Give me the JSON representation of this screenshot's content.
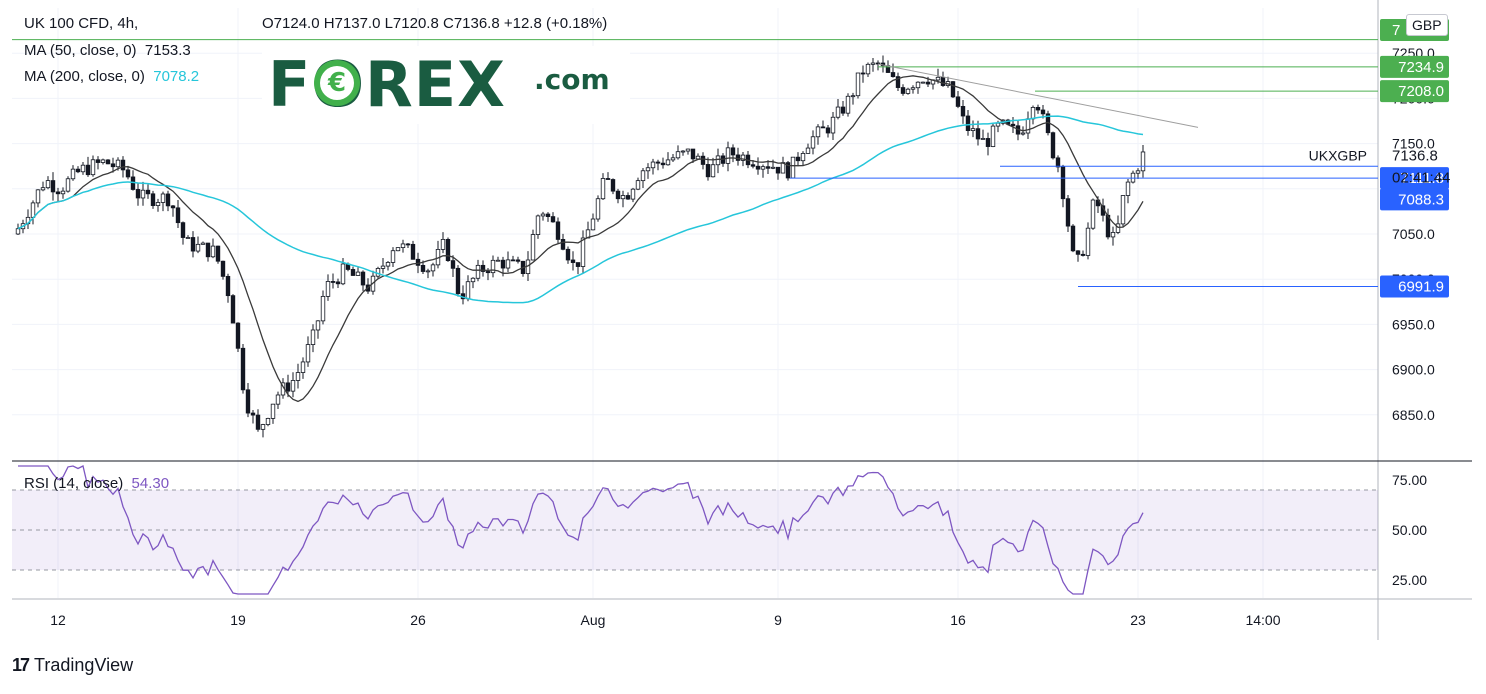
{
  "header": {
    "symbol_line": "UK 100 CFD, 4h,",
    "ohlc": "O7124.0  H7137.0  L7120.8  C7136.8  +12.8 (+0.18%)",
    "ma50_label": "MA (50, close, 0)",
    "ma50_value": "7153.3",
    "ma200_label": "MA (200, close, 0)",
    "ma200_value": "7078.2",
    "rsi_label": "RSI (14, close)",
    "rsi_value": "54.30",
    "currency": "GBP"
  },
  "logo": {
    "brand": "FOREX",
    "suffix": ".com"
  },
  "footer": {
    "brand": "TradingView"
  },
  "colors": {
    "up": "#ffffff",
    "down": "#131722",
    "ma50": "#3a3a3a",
    "ma200": "#26c6da",
    "rsi": "#7e57c2",
    "rsi_band": "#7e57c2",
    "green_level": "#4caf50",
    "blue_level": "#2962ff",
    "trendline": "#9e9e9e"
  },
  "chart_data": {
    "type": "candlestick",
    "timeframe": "4h",
    "price_axis": {
      "ticks": [
        "7250.0",
        "7200.0",
        "7150.0",
        "7100.0",
        "7050.0",
        "7000.0",
        "6950.0",
        "6900.0",
        "6850.0"
      ],
      "range": [
        6800,
        7300
      ]
    },
    "time_axis": {
      "ticks": [
        "12",
        "19",
        "26",
        "Aug",
        "9",
        "16",
        "23",
        "14:00"
      ]
    },
    "rsi_axis": {
      "ticks": [
        "75.00",
        "50.00",
        "25.00"
      ],
      "band": [
        30,
        70
      ]
    },
    "symbol_label": "UKXGBP",
    "last_price": "7136.8",
    "countdown": "02:41:44",
    "price_labels": [
      {
        "text": "7234.9",
        "color": "green"
      },
      {
        "text": "7208.0",
        "color": "green"
      },
      {
        "text": "7111.8",
        "color": "blue"
      },
      {
        "text": "7088.3",
        "color": "blue"
      },
      {
        "text": "6991.9",
        "color": "blue"
      }
    ],
    "top_label_partial": "7"
  }
}
